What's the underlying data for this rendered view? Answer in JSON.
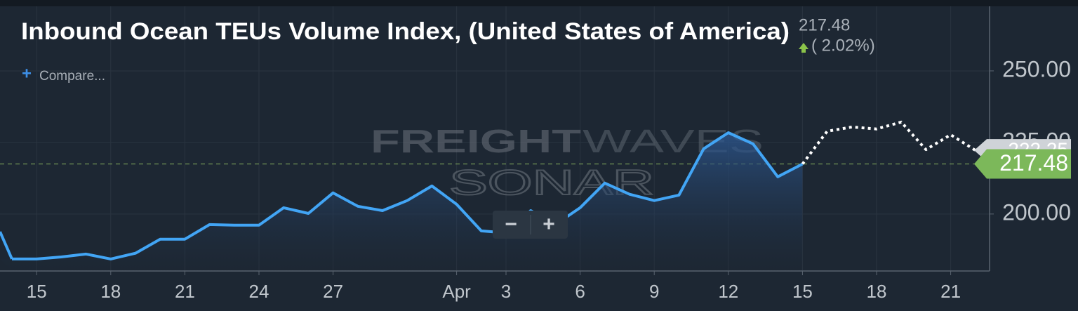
{
  "chart_data": {
    "type": "line",
    "title": "Inbound Ocean TEUs Volume Index, (United States of America)",
    "header_value": "217.48",
    "header_change": "( 2.02%)",
    "compare_label": "Compare...",
    "watermark": [
      "FREIGHT",
      "WAVES",
      "SONAR"
    ],
    "zoom_buttons": [
      "−",
      "+"
    ],
    "categories": [
      null,
      "15",
      null,
      null,
      "18",
      null,
      null,
      "21",
      null,
      null,
      "24",
      null,
      null,
      "27",
      null,
      null,
      null,
      null,
      "Apr",
      null,
      "3",
      null,
      null,
      "6",
      null,
      null,
      "9",
      null,
      null,
      "12",
      null,
      null,
      "15",
      null,
      null,
      "18",
      null,
      null,
      "21",
      null
    ],
    "series": [
      {
        "color": "#42a5f5",
        "style": "solid",
        "values": [
          184.3,
          184.3,
          185.0,
          186.0,
          184.3,
          186.3,
          191.2,
          191.2,
          196.3,
          196.1,
          196.1,
          202.2,
          200.2,
          207.4,
          202.7,
          201.2,
          204.7,
          209.8,
          203.4,
          194.1,
          193.4,
          201.2,
          196.3,
          202.2,
          210.8,
          206.9,
          204.7,
          206.6,
          222.8,
          228.4,
          224.5,
          213.0,
          217.48,
          null,
          null,
          null,
          null,
          null,
          null,
          null
        ]
      },
      {
        "color": "#ffffff",
        "style": "dotted",
        "values": [
          null,
          null,
          null,
          null,
          null,
          null,
          null,
          null,
          null,
          null,
          null,
          null,
          null,
          null,
          null,
          null,
          null,
          null,
          null,
          null,
          null,
          null,
          null,
          null,
          null,
          null,
          null,
          null,
          null,
          null,
          null,
          null,
          217.48,
          228.9,
          230.4,
          229.7,
          232.1,
          222.5,
          227.7,
          222.25
        ]
      }
    ],
    "reference_line": 217.48,
    "last_labels": [
      {
        "value": 222.25,
        "label": "222.25",
        "color": "#cfd3d8"
      },
      {
        "value": 217.48,
        "label": "217.48",
        "color": "#7cb85a"
      }
    ],
    "ylim": [
      180.1,
      272.3
    ],
    "yticks": [
      {
        "value": 200,
        "label": "200.00"
      },
      {
        "value": 225,
        "label": "225.00"
      },
      {
        "value": 250,
        "label": "250.00"
      }
    ],
    "grid": true
  }
}
